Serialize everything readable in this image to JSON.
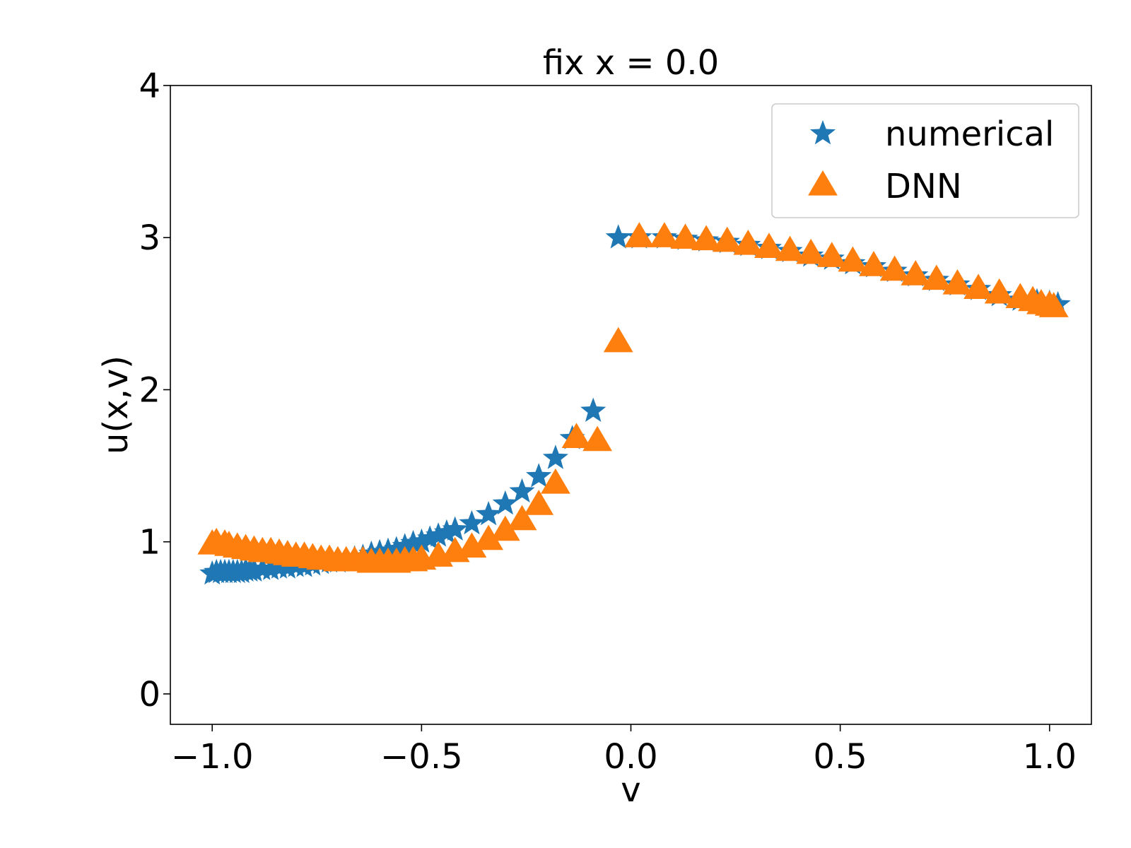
{
  "chart_data": {
    "type": "scatter",
    "title": "fix x = 0.0",
    "xlabel": "v",
    "ylabel": "u(x,v)",
    "xlim": [
      -1.1,
      1.1
    ],
    "ylim": [
      -0.2,
      4.0
    ],
    "xticks": [
      -1.0,
      -0.5,
      0.0,
      0.5,
      1.0
    ],
    "xtick_labels": [
      "−1.0",
      "−0.5",
      "0.0",
      "0.5",
      "1.0"
    ],
    "yticks": [
      0,
      1,
      2,
      3,
      4
    ],
    "ytick_labels": [
      "0",
      "1",
      "2",
      "3",
      "4"
    ],
    "grid": false,
    "legend_position": "top-right",
    "series": [
      {
        "name": "numerical",
        "marker": "star",
        "color": "#1f77b4",
        "x": [
          -1.0,
          -0.99,
          -0.98,
          -0.97,
          -0.96,
          -0.95,
          -0.94,
          -0.93,
          -0.92,
          -0.91,
          -0.9,
          -0.88,
          -0.86,
          -0.84,
          -0.82,
          -0.8,
          -0.78,
          -0.76,
          -0.74,
          -0.72,
          -0.7,
          -0.68,
          -0.66,
          -0.64,
          -0.62,
          -0.6,
          -0.58,
          -0.56,
          -0.54,
          -0.52,
          -0.5,
          -0.48,
          -0.46,
          -0.44,
          -0.42,
          -0.38,
          -0.34,
          -0.3,
          -0.26,
          -0.22,
          -0.18,
          -0.14,
          -0.09,
          -0.03,
          0.02,
          0.08,
          0.13,
          0.18,
          0.23,
          0.28,
          0.33,
          0.38,
          0.43,
          0.48,
          0.53,
          0.58,
          0.63,
          0.68,
          0.73,
          0.78,
          0.83,
          0.88,
          0.93,
          0.97,
          1.0,
          1.02
        ],
        "y": [
          0.79,
          0.8,
          0.8,
          0.8,
          0.8,
          0.8,
          0.8,
          0.8,
          0.81,
          0.81,
          0.81,
          0.82,
          0.82,
          0.83,
          0.83,
          0.84,
          0.84,
          0.85,
          0.86,
          0.87,
          0.87,
          0.88,
          0.89,
          0.9,
          0.92,
          0.93,
          0.94,
          0.95,
          0.97,
          0.99,
          1.0,
          1.02,
          1.04,
          1.06,
          1.08,
          1.12,
          1.18,
          1.25,
          1.33,
          1.43,
          1.55,
          1.68,
          1.86,
          3.0,
          3.0,
          3.0,
          2.99,
          2.98,
          2.97,
          2.95,
          2.93,
          2.91,
          2.88,
          2.86,
          2.83,
          2.81,
          2.78,
          2.75,
          2.72,
          2.69,
          2.66,
          2.62,
          2.59,
          2.58,
          2.57,
          2.56
        ]
      },
      {
        "name": "DNN",
        "marker": "triangle",
        "color": "#ff7f0e",
        "x": [
          -1.0,
          -0.99,
          -0.97,
          -0.96,
          -0.94,
          -0.92,
          -0.9,
          -0.88,
          -0.86,
          -0.84,
          -0.82,
          -0.8,
          -0.78,
          -0.76,
          -0.74,
          -0.72,
          -0.7,
          -0.68,
          -0.66,
          -0.64,
          -0.62,
          -0.6,
          -0.58,
          -0.56,
          -0.54,
          -0.52,
          -0.5,
          -0.46,
          -0.42,
          -0.38,
          -0.34,
          -0.3,
          -0.26,
          -0.22,
          -0.18,
          -0.13,
          -0.08,
          -0.03,
          0.02,
          0.08,
          0.13,
          0.18,
          0.23,
          0.28,
          0.33,
          0.38,
          0.43,
          0.48,
          0.53,
          0.58,
          0.63,
          0.68,
          0.73,
          0.78,
          0.83,
          0.88,
          0.93,
          0.96,
          0.98,
          1.0,
          1.01
        ],
        "y": [
          0.98,
          0.99,
          0.98,
          0.97,
          0.96,
          0.95,
          0.94,
          0.93,
          0.93,
          0.92,
          0.91,
          0.9,
          0.9,
          0.89,
          0.88,
          0.88,
          0.87,
          0.87,
          0.87,
          0.87,
          0.86,
          0.86,
          0.86,
          0.86,
          0.87,
          0.87,
          0.88,
          0.9,
          0.93,
          0.96,
          1.01,
          1.07,
          1.14,
          1.24,
          1.38,
          1.68,
          1.66,
          2.31,
          3.0,
          3.0,
          2.99,
          2.98,
          2.97,
          2.95,
          2.93,
          2.91,
          2.89,
          2.87,
          2.84,
          2.81,
          2.78,
          2.75,
          2.72,
          2.69,
          2.66,
          2.63,
          2.6,
          2.58,
          2.56,
          2.55,
          2.54
        ]
      }
    ]
  }
}
